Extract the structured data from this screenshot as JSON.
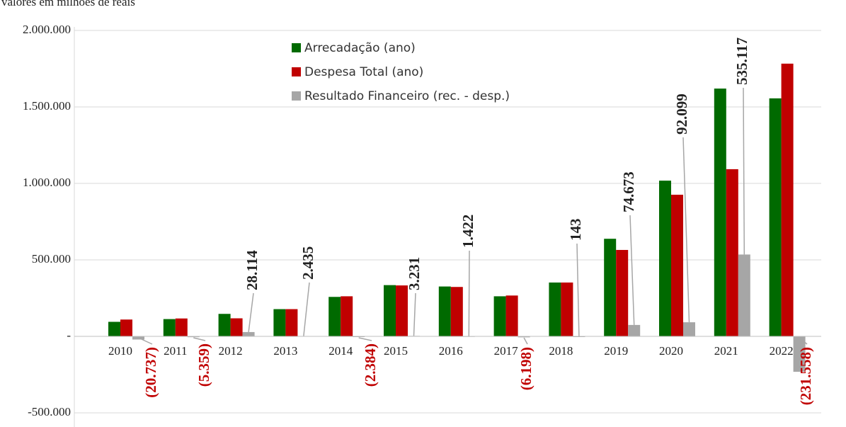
{
  "chart_data": {
    "type": "bar",
    "subtitle": "valores em milhões de reais",
    "categories": [
      "2010",
      "2011",
      "2012",
      "2013",
      "2014",
      "2015",
      "2016",
      "2017",
      "2018",
      "2019",
      "2020",
      "2021",
      "2022"
    ],
    "series": [
      {
        "name": "Arrecadação (ano)",
        "color": "#006a00",
        "values": [
          95000,
          113000,
          147000,
          178000,
          258000,
          335000,
          326000,
          262000,
          352000,
          638000,
          1018000,
          1620000,
          1556000
        ]
      },
      {
        "name": "Despesa Total (ano)",
        "color": "#c00000",
        "values": [
          110000,
          117000,
          118000,
          178000,
          262000,
          333000,
          323000,
          267000,
          352000,
          565000,
          926000,
          1093000,
          1783000
        ]
      },
      {
        "name": "Resultado Financeiro  (rec. - desp.)",
        "color": "#a6a6a6",
        "values": [
          -20737,
          -5359,
          28114,
          2435,
          -2384,
          3231,
          1422,
          -6198,
          143,
          74673,
          92099,
          535117,
          -231558
        ],
        "value_labels": [
          "(20.737)",
          "(5.359)",
          "28.114",
          "2.435",
          "(2.384)",
          "3.231",
          "1.422",
          "(6.198)",
          "143",
          "74.673",
          "92.099",
          "535.117",
          "(231.558)"
        ]
      }
    ],
    "ylim": [
      -550000,
      2020000
    ],
    "yticks": [
      {
        "value": -500000,
        "label": "-500.000"
      },
      {
        "value": 0,
        "label": "-"
      },
      {
        "value": 500000,
        "label": "500.000"
      },
      {
        "value": 1000000,
        "label": "1.000.000"
      },
      {
        "value": 1500000,
        "label": "1.500.000"
      },
      {
        "value": 2000000,
        "label": "2.000.000"
      }
    ],
    "grid": true,
    "legend": "top"
  }
}
